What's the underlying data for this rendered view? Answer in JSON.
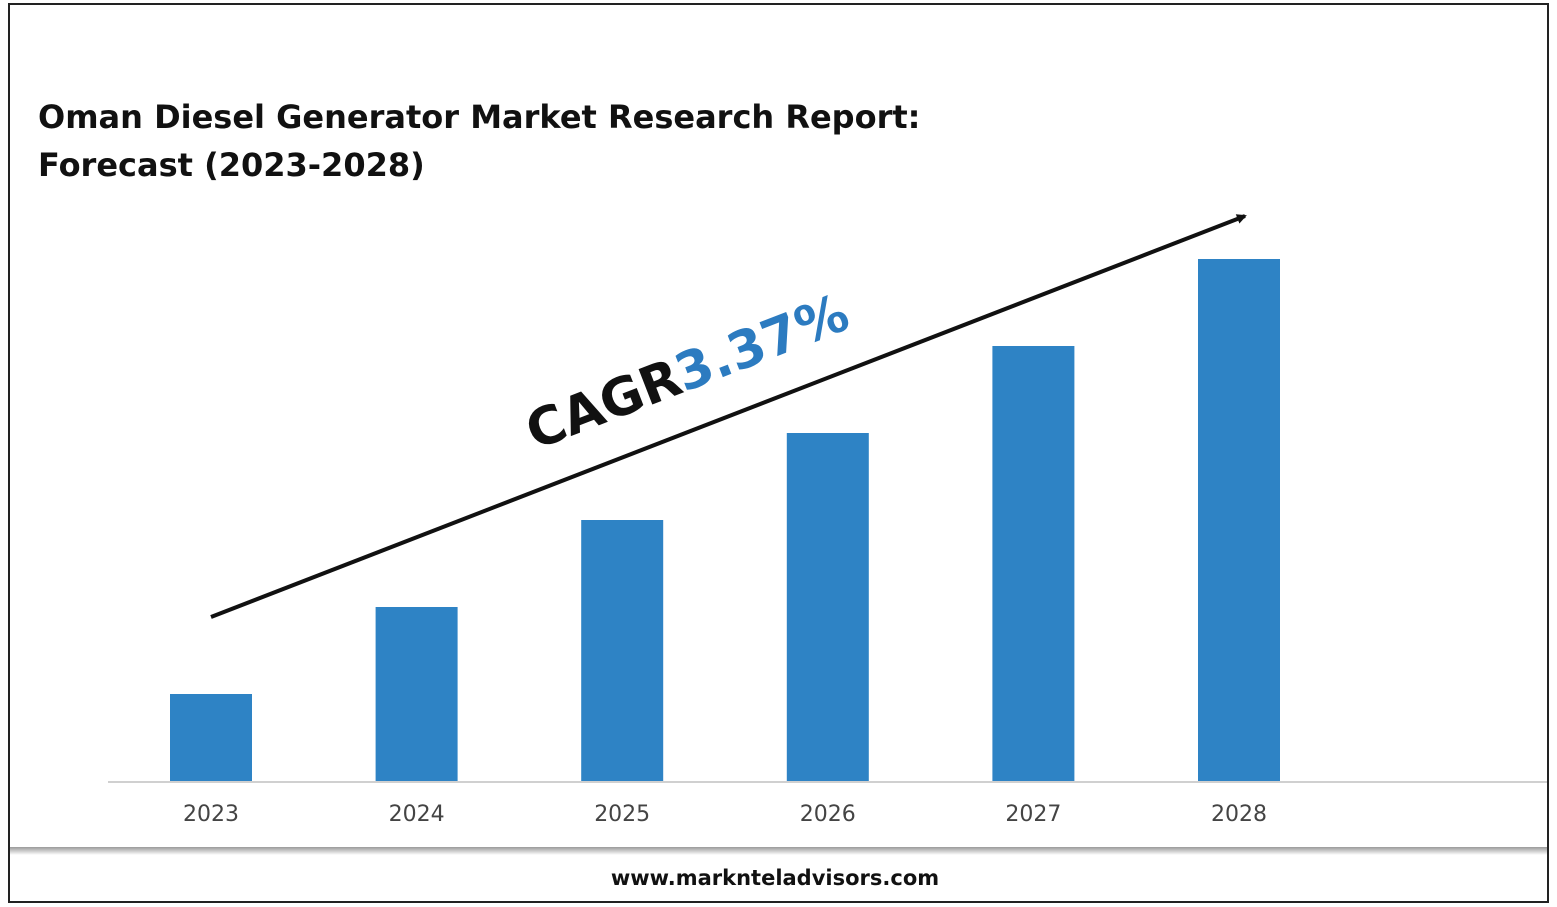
{
  "chart_data": {
    "type": "bar",
    "title": [
      "Oman Diesel Generator Market Research Report:",
      "Forecast (2023-2028)"
    ],
    "categories": [
      "2023",
      "2024",
      "2025",
      "2026",
      "2027",
      "2028"
    ],
    "values": [
      1,
      2,
      3,
      4,
      5,
      6
    ],
    "color": "#2e83c5",
    "annotation": {
      "label": "CAGR",
      "value": "3.37%"
    },
    "footer": "www.marknteladvisors.com"
  }
}
